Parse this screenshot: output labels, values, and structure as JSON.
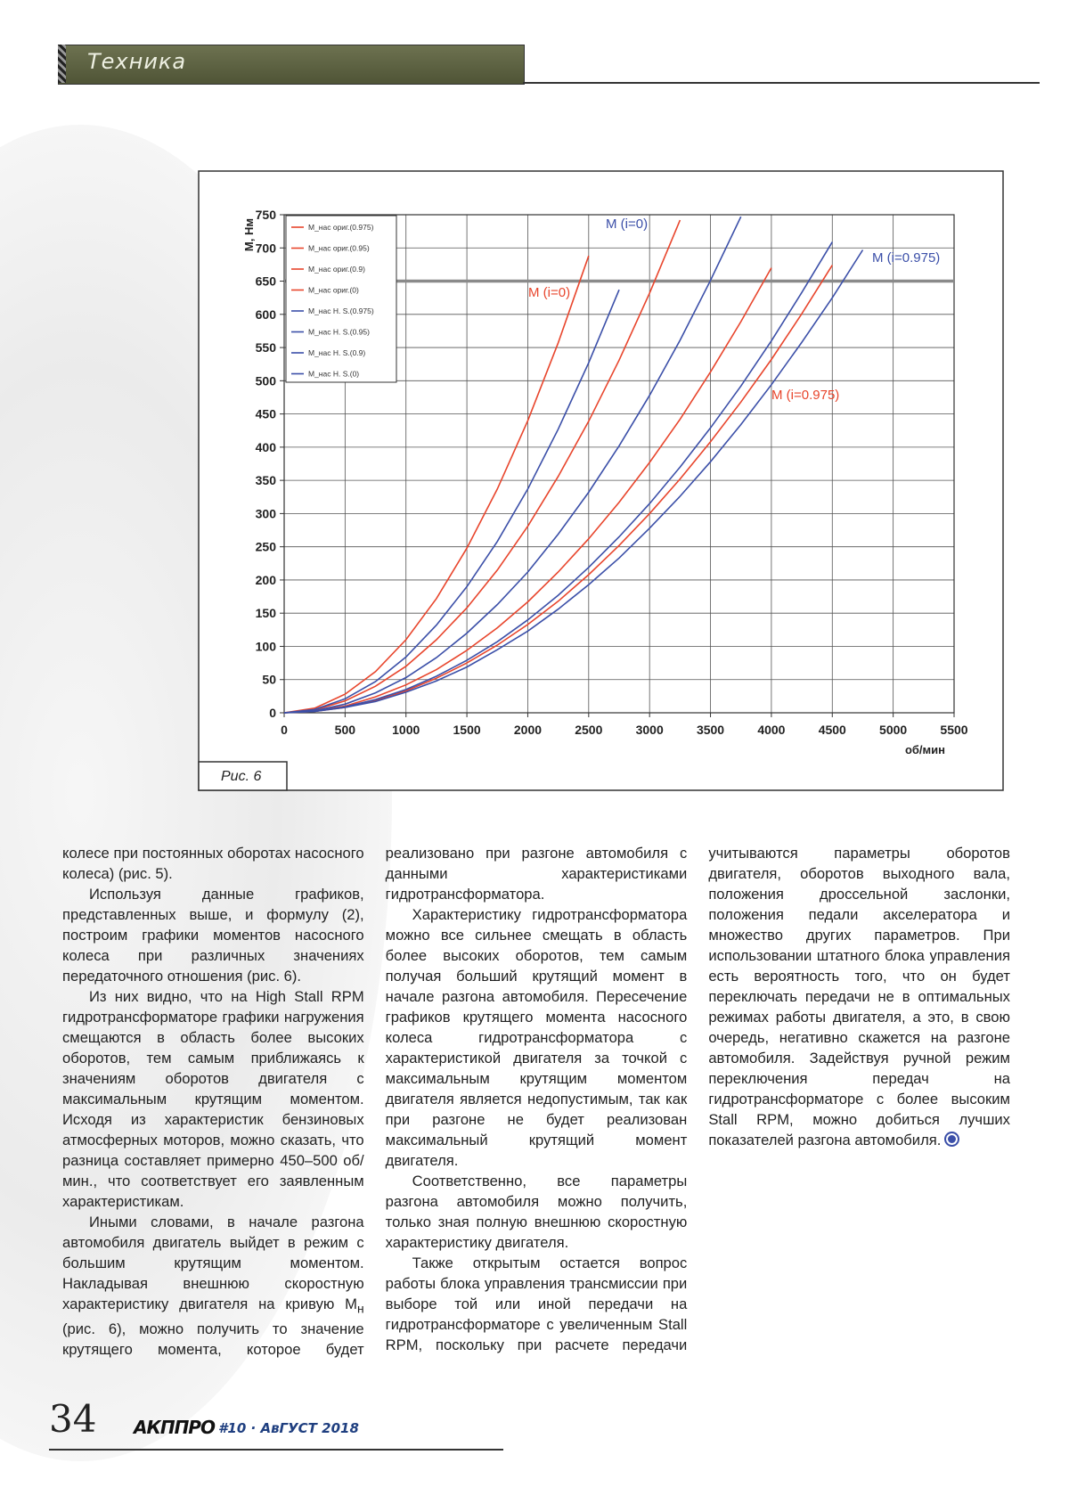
{
  "header": {
    "section": "Техника"
  },
  "figure": {
    "caption": "Рис. 6",
    "chart_data": {
      "type": "line",
      "xlabel": "об/мин",
      "ylabel": "М, Нм",
      "x": [
        0,
        250,
        500,
        750,
        1000,
        1250,
        1500,
        1750,
        2000,
        2250,
        2500,
        2750,
        3000,
        3250,
        3500,
        3750,
        4000,
        4250,
        4500,
        4750,
        5000
      ],
      "xlim": [
        0,
        5500
      ],
      "xticks": [
        0,
        500,
        1000,
        1500,
        2000,
        2500,
        3000,
        3500,
        4000,
        4500,
        5000,
        5500
      ],
      "ylim": [
        0,
        750
      ],
      "yticks": [
        0,
        50,
        100,
        150,
        200,
        250,
        300,
        350,
        400,
        450,
        500,
        550,
        600,
        650,
        700,
        750
      ],
      "grid": true,
      "legend": "upper left",
      "reference_line": {
        "value": 650,
        "color": "#8a8a8a"
      },
      "series": [
        {
          "name": "М_нас ориг.(0.975)",
          "color": "#e8452c",
          "values": [
            0,
            2,
            8,
            19,
            33,
            52,
            75,
            102,
            133,
            168,
            208,
            252,
            300,
            352,
            408,
            468,
            532,
            601,
            674,
            null,
            null
          ]
        },
        {
          "name": "М_нас ориг.(0.95)",
          "color": "#e8452c",
          "values": [
            0,
            3,
            10,
            24,
            42,
            65,
            94,
            128,
            167,
            212,
            262,
            317,
            377,
            442,
            513,
            589,
            670,
            null,
            null,
            null,
            null
          ]
        },
        {
          "name": "М_нас ориг.(0.9)",
          "color": "#e8452c",
          "values": [
            0,
            4,
            18,
            40,
            70,
            110,
            158,
            215,
            281,
            356,
            439,
            531,
            632,
            742,
            null,
            null,
            null,
            null,
            null,
            null,
            null
          ]
        },
        {
          "name": "М_нас ориг.(0)",
          "color": "#e8452c",
          "values": [
            0,
            7,
            28,
            62,
            110,
            172,
            248,
            337,
            440,
            557,
            688,
            null,
            null,
            null,
            null,
            null,
            null,
            null,
            null,
            null,
            null
          ]
        },
        {
          "name": "М_нас H. S.(0.975)",
          "color": "#3b4fa8",
          "values": [
            0,
            2,
            8,
            17,
            31,
            48,
            69,
            95,
            123,
            156,
            193,
            233,
            278,
            326,
            378,
            434,
            494,
            558,
            625,
            697,
            null
          ]
        },
        {
          "name": "М_нас H. S.(0.95)",
          "color": "#3b4fa8",
          "values": [
            0,
            2,
            9,
            20,
            35,
            55,
            79,
            107,
            140,
            177,
            219,
            265,
            315,
            370,
            429,
            492,
            560,
            633,
            709,
            null,
            null
          ]
        },
        {
          "name": "М_нас H. S.(0.9)",
          "color": "#3b4fa8",
          "values": [
            0,
            3,
            13,
            30,
            53,
            83,
            120,
            163,
            212,
            269,
            332,
            402,
            478,
            561,
            651,
            747,
            null,
            null,
            null,
            null,
            null
          ]
        },
        {
          "name": "М_нас H. S.(0)",
          "color": "#3b4fa8",
          "values": [
            0,
            5,
            21,
            47,
            84,
            132,
            190,
            258,
            337,
            427,
            527,
            637,
            null,
            null,
            null,
            null,
            null,
            null,
            null,
            null,
            null
          ]
        }
      ],
      "annotations": [
        {
          "text": "M (i=0)",
          "color": "#e8452c"
        },
        {
          "text": "M (i=0)",
          "color": "#3b4fa8"
        },
        {
          "text": "M (i=0.975)",
          "color": "#3b4fa8"
        },
        {
          "text": "M (i=0.975)",
          "color": "#e8452c"
        }
      ]
    }
  },
  "article": {
    "paragraphs": [
      {
        "text": "колесе при постоянных оборотах насосного колеса) (рис. 5)."
      },
      {
        "text": "Используя данные графиков, представленных выше, и формулу (2), построим графики моментов насосного колеса при различных значениях передаточного отношения (рис. 6)."
      },
      {
        "text": "Из них видно, что на High Stall RPM гидротрансформаторе графики нагружения смещаются в область более высоких оборотов, тем самым приближаясь к значениям оборотов двигателя с максимальным крутящим моментом. Исходя из характеристик бензиновых атмосферных моторов, можно сказать, что разница составляет примерно 450–500 об/мин., что соответствует его заявленным характеристикам."
      },
      {
        "text": "Иными словами, в начале разгона автомобиля двигатель выйдет в режим с большим крутящим моментом. Накладывая внешнюю скоростную характеристику двигателя на кривую М",
        "sub": "н",
        "after": " (рис. 6), можно получить то значение крутящего момента, которое будет реализовано при разгоне автомобиля с данными характеристиками гидротрансформатора."
      },
      {
        "text": "Характеристику гидротрансформатора можно все сильнее смещать в область более высоких оборотов, тем самым получая больший крутящий момент в начале разгона автомобиля. Пересечение графиков крутящего момента насосного колеса гидротрансформатора с характеристикой двигателя за точкой с максимальным крутящим моментом двигателя является недопустимым, так как при разгоне не будет реализован максимальный крутящий момент двигателя."
      },
      {
        "text": "Соответственно, все параметры разгона автомобиля можно получить, только зная полную внешнюю скоростную характеристику двигателя."
      },
      {
        "text": "Также открытым остается вопрос работы блока управления трансмиссии при выборе той или иной передачи на гидротрансформаторе с увеличенным Stall RPM, поскольку при расчете передачи учитываются параметры оборотов двигателя, оборотов выходного вала, положения дроссельной заслонки, положения педали акселератора и множество других параметров. При использовании штатного блока управления есть вероятность того, что он будет переключать передачи не в оптимальных режимах работы двигателя, а это, в свою очередь, негативно скажется на разгоне автомобиля. Задействуя ручной режим переключения передач на гидротрансформаторе с более высоким Stall RPM, можно добиться лучших показателей разгона автомобиля."
      }
    ]
  },
  "footer": {
    "page": "34",
    "brand": "АКППРО",
    "issue": "#10 · АвГУСТ 2018"
  }
}
